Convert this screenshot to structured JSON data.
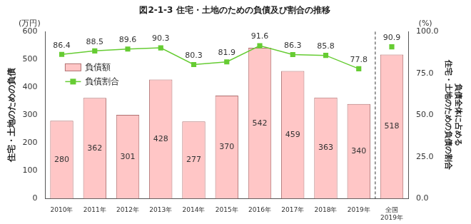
{
  "chart_data": {
    "type": "bar",
    "title": "図2-1-3 住宅・土地のための負債及び割合の推移",
    "y_label": "住宅・土地のための負債",
    "y_unit": "(万円)",
    "y2_label": [
      "負債全体に占める",
      "住宅・土地のための負債の割合"
    ],
    "y2_unit": "(%)",
    "categories": [
      "2010年",
      "2011年",
      "2012年",
      "2013年",
      "2014年",
      "2015年",
      "2016年",
      "2017年",
      "2018年",
      "2019年",
      [
        "全国",
        "2019年"
      ]
    ],
    "series": [
      {
        "name": "負債額",
        "type": "bar",
        "color": "#ffc6c6",
        "values": [
          280,
          362,
          301,
          428,
          277,
          370,
          542,
          459,
          363,
          340,
          518
        ]
      },
      {
        "name": "負債割合",
        "type": "line",
        "axis": "y2",
        "color": "#66cc33",
        "marker": "square",
        "values": [
          86.4,
          88.5,
          89.6,
          90.3,
          80.3,
          81.9,
          91.6,
          86.3,
          85.8,
          77.8,
          90.9
        ]
      }
    ],
    "ylim": [
      0,
      600
    ],
    "yticks": [
      0,
      100,
      200,
      300,
      400,
      500,
      600
    ],
    "y2lim": [
      0,
      100
    ],
    "y2ticks": [
      {
        "value": 0,
        "label": "0.0"
      },
      {
        "value": 25,
        "label": "25.0"
      },
      {
        "value": 50,
        "label": "50.0"
      },
      {
        "value": 75,
        "label": "75.0"
      },
      {
        "value": 100,
        "label": "100.0"
      }
    ],
    "grid": false,
    "legend": "upper left",
    "data_labels": true
  }
}
